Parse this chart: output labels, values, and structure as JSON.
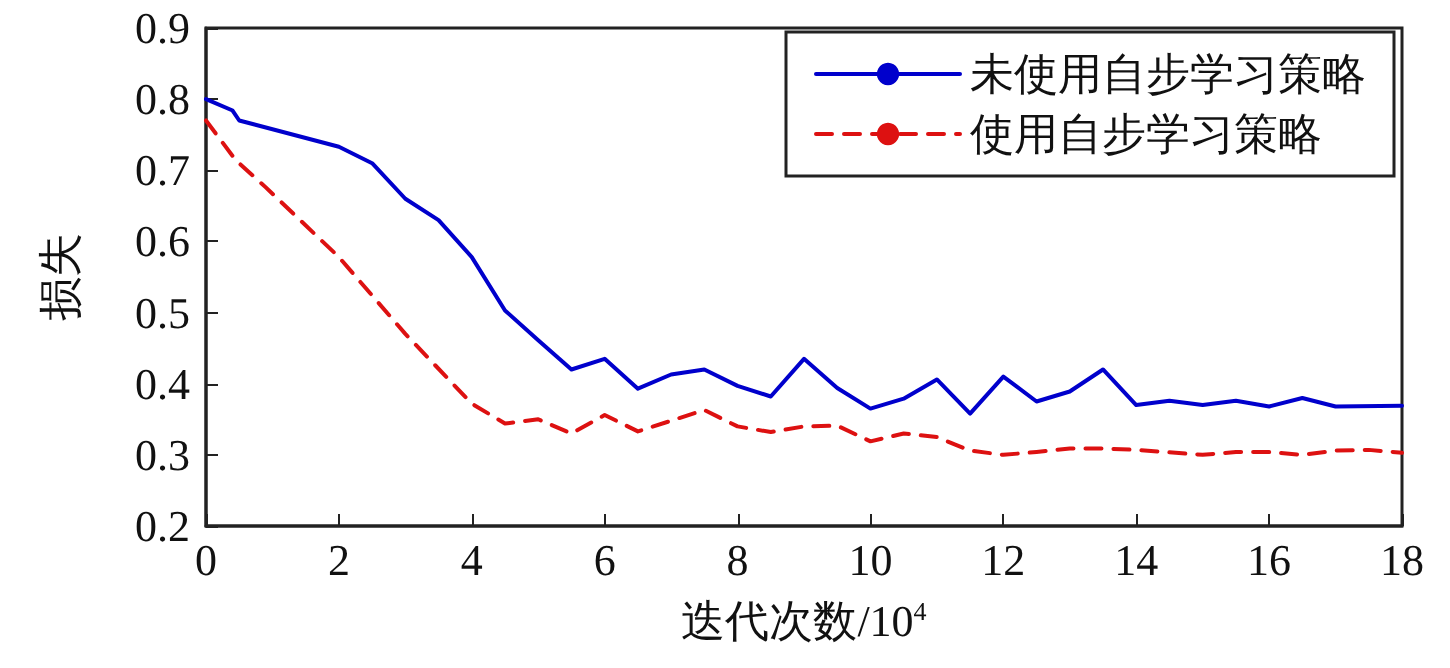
{
  "chart_data": {
    "type": "line",
    "xlabel": "迭代次数/10$^{4}$",
    "ylabel": "损失",
    "xlim": [
      0,
      18
    ],
    "xticks": [
      0,
      2,
      4,
      6,
      8,
      10,
      12,
      14,
      16,
      18
    ],
    "ylim": [
      0.2,
      0.9
    ],
    "yticks": [
      0.2,
      0.3,
      0.4,
      0.5,
      0.6,
      0.7,
      0.8,
      0.9
    ],
    "grid": false,
    "legend": "top right",
    "marker": "none",
    "series": [
      {
        "name": "未使用自步学习策略",
        "color": "#0000cc",
        "line_style": "solid",
        "x": [
          0,
          0.4,
          0.5,
          2,
          2.5,
          3,
          3.5,
          4,
          4.5,
          5,
          5.5,
          6,
          6.5,
          7,
          7.5,
          8,
          8.5,
          9,
          9.5,
          10,
          10.5,
          11,
          11.5,
          12,
          12.5,
          13,
          13.5,
          14,
          14.5,
          15,
          15.5,
          16,
          16.5,
          17,
          18
        ],
        "values": [
          0.8,
          0.784,
          0.77,
          0.733,
          0.71,
          0.66,
          0.63,
          0.578,
          0.503,
          0.461,
          0.42,
          0.435,
          0.393,
          0.413,
          0.42,
          0.397,
          0.382,
          0.435,
          0.394,
          0.365,
          0.379,
          0.406,
          0.358,
          0.41,
          0.375,
          0.389,
          0.42,
          0.37,
          0.376,
          0.37,
          0.376,
          0.368,
          0.38,
          0.368,
          0.369
        ]
      },
      {
        "name": "使用自步学习策略",
        "color": "#dd1111",
        "line_style": "dashed",
        "x": [
          0,
          0.45,
          0.9,
          2,
          3,
          4,
          4.5,
          5,
          5.5,
          6,
          6.5,
          7.5,
          8,
          8.5,
          9,
          9.5,
          10,
          10.5,
          11,
          11.5,
          12,
          12.5,
          13,
          13.5,
          14,
          15,
          15.5,
          16,
          16.5,
          17,
          17.5,
          18
        ],
        "values": [
          0.77,
          0.714,
          0.676,
          0.578,
          0.47,
          0.372,
          0.344,
          0.35,
          0.33,
          0.356,
          0.333,
          0.363,
          0.34,
          0.332,
          0.34,
          0.341,
          0.319,
          0.33,
          0.325,
          0.306,
          0.3,
          0.304,
          0.309,
          0.309,
          0.307,
          0.3,
          0.304,
          0.304,
          0.3,
          0.306,
          0.307,
          0.303
        ]
      }
    ]
  }
}
